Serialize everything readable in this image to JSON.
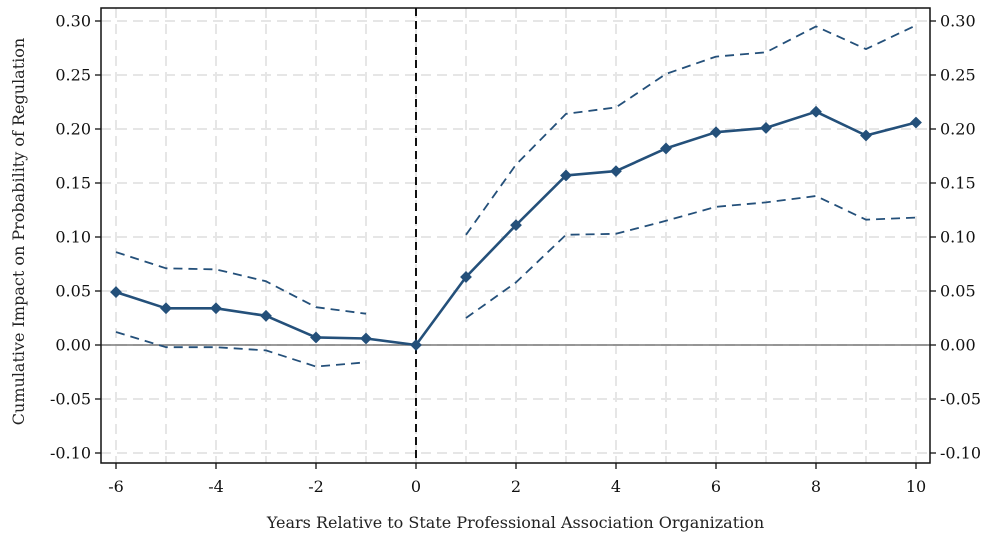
{
  "chart_data": {
    "type": "line",
    "title": "",
    "xlabel": "Years Relative to State Professional Association Organization",
    "ylabel": "Cumulative Impact on Probability of Regulation",
    "xlim": [
      -6,
      10
    ],
    "ylim": [
      -0.1,
      0.3
    ],
    "x_ticks": [
      -6,
      -4,
      -2,
      0,
      2,
      4,
      6,
      8,
      10
    ],
    "x_tick_labels": [
      "-6",
      "-4",
      "-2",
      "0",
      "2",
      "4",
      "6",
      "8",
      "10"
    ],
    "y_ticks": [
      -0.1,
      -0.05,
      0,
      0.05,
      0.1,
      0.15,
      0.2,
      0.25,
      0.3
    ],
    "y_tick_labels": [
      "-0.10",
      "-0.05",
      "0.00",
      "0.05",
      "0.10",
      "0.15",
      "0.20",
      "0.25",
      "0.30"
    ],
    "grid": true,
    "grid_x": [
      -6,
      -5,
      -4,
      -3,
      -2,
      -1,
      0,
      1,
      2,
      3,
      4,
      5,
      6,
      7,
      8,
      9,
      10
    ],
    "grid_y": [
      -0.1,
      -0.05,
      0,
      0.05,
      0.1,
      0.15,
      0.2,
      0.25,
      0.3
    ],
    "right_axis_mirrors_left": true,
    "reference_lines": {
      "horizontal_y": 0,
      "vertical_x": 0
    },
    "colors": {
      "series": "#24507a",
      "reference_h": "#7a7a7a",
      "reference_v": "#111111",
      "grid": "#e6e6e6",
      "frame": "#111111"
    },
    "series": [
      {
        "role": "estimate",
        "style": "solid",
        "marker": "diamond",
        "x": [
          -6,
          -5,
          -4,
          -3,
          -2,
          -1,
          0,
          1,
          2,
          3,
          4,
          5,
          6,
          7,
          8,
          9,
          10
        ],
        "values": [
          0.049,
          0.034,
          0.034,
          0.027,
          0.007,
          0.006,
          0.0,
          0.063,
          0.111,
          0.157,
          0.161,
          0.182,
          0.197,
          0.201,
          0.216,
          0.194,
          0.206
        ]
      },
      {
        "role": "upper_ci_pre",
        "style": "dashed",
        "x": [
          -6,
          -5,
          -4,
          -3,
          -2,
          -1
        ],
        "values": [
          0.086,
          0.071,
          0.07,
          0.059,
          0.035,
          0.029
        ]
      },
      {
        "role": "lower_ci_pre",
        "style": "dashed",
        "x": [
          -6,
          -5,
          -4,
          -3,
          -2,
          -1
        ],
        "values": [
          0.012,
          -0.002,
          -0.002,
          -0.005,
          -0.02,
          -0.016
        ]
      },
      {
        "role": "upper_ci_post",
        "style": "dashed",
        "x": [
          1,
          2,
          3,
          4,
          5,
          6,
          7,
          8,
          9,
          10
        ],
        "values": [
          0.102,
          0.167,
          0.214,
          0.22,
          0.251,
          0.267,
          0.271,
          0.295,
          0.274,
          0.296
        ]
      },
      {
        "role": "lower_ci_post",
        "style": "dashed",
        "x": [
          1,
          2,
          3,
          4,
          5,
          6,
          7,
          8,
          9,
          10
        ],
        "values": [
          0.025,
          0.058,
          0.102,
          0.103,
          0.115,
          0.128,
          0.132,
          0.138,
          0.116,
          0.118
        ]
      }
    ]
  }
}
